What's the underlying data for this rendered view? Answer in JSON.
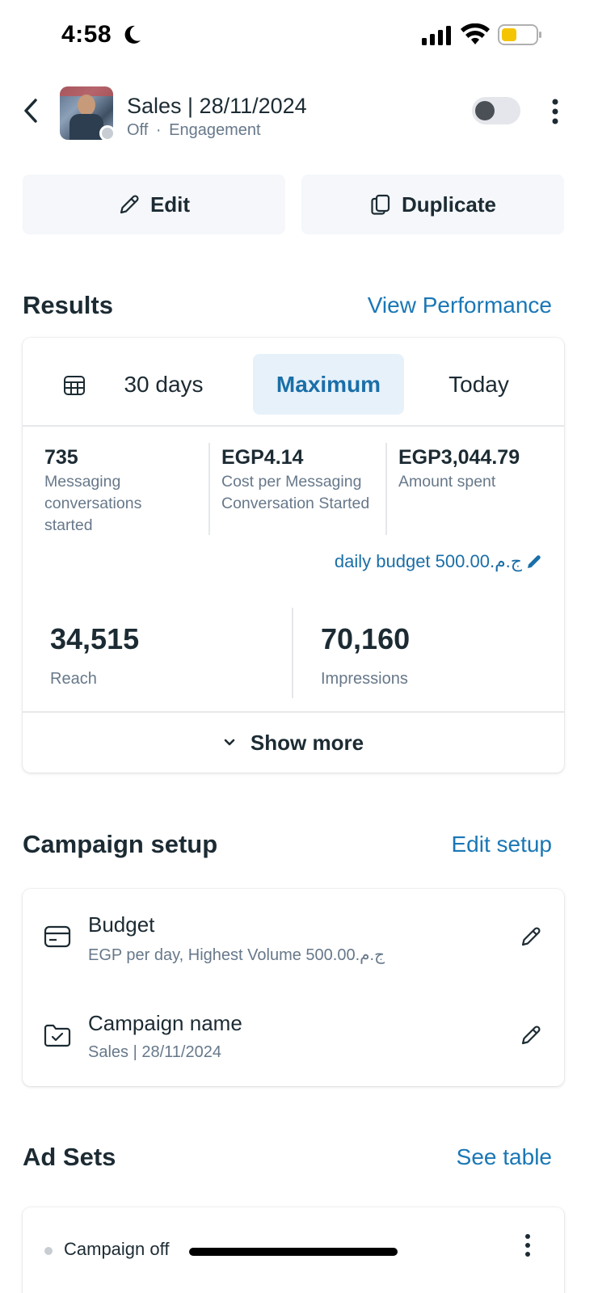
{
  "status_bar": {
    "time": "4:58"
  },
  "header": {
    "title": "Sales | 28/11/2024",
    "status": "Off",
    "separator": "·",
    "objective": "Engagement"
  },
  "actions": {
    "edit_label": "Edit",
    "duplicate_label": "Duplicate"
  },
  "results": {
    "title": "Results",
    "link": "View Performance",
    "tabs": [
      {
        "label": "30 days",
        "selected": false
      },
      {
        "label": "Maximum",
        "selected": true
      },
      {
        "label": "Today",
        "selected": false
      }
    ],
    "metrics": [
      {
        "value": "735",
        "label_lines": [
          "Messaging",
          "conversations",
          "started"
        ]
      },
      {
        "value": "EGP4.14",
        "label_lines": [
          "Cost per Messaging",
          "Conversation Started"
        ]
      },
      {
        "value": "EGP3,044.79",
        "label_lines": [
          "Amount spent"
        ]
      }
    ],
    "daily_budget": "daily budget 500.00.ج.م",
    "reach": {
      "value": "34,515",
      "label": "Reach"
    },
    "impressions": {
      "value": "70,160",
      "label": "Impressions"
    },
    "show_more": "Show more"
  },
  "setup": {
    "title": "Campaign setup",
    "link": "Edit setup",
    "budget": {
      "title": "Budget",
      "subtitle": "EGP per day, Highest Volume 500.00.ج.م"
    },
    "campaign_name": {
      "title": "Campaign name",
      "subtitle": "Sales | 28/11/2024"
    }
  },
  "adsets": {
    "title": "Ad Sets",
    "link": "See table",
    "first_item_status": "Campaign off"
  },
  "colors": {
    "accent": "#1a77b5",
    "selected_tab_bg": "#e7f1fa",
    "text": "#1c2b33",
    "muted": "#67788a"
  }
}
